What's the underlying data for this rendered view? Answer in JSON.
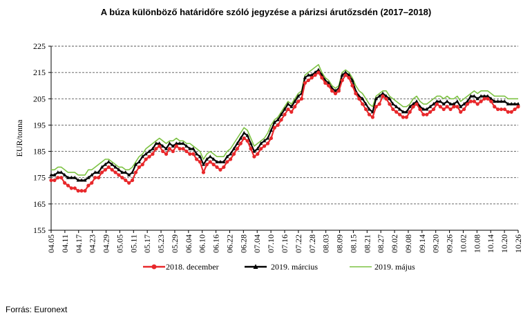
{
  "title": "A búza különböző határidőre szóló jegyzése a párizsi árutőzsdén (2017–2018)",
  "source": "Forrás: Euronext",
  "chart_data": {
    "type": "line",
    "ylabel": "EUR/tonna",
    "ylim": [
      155,
      225
    ],
    "yticks": [
      155,
      165,
      175,
      185,
      195,
      205,
      215,
      225
    ],
    "grid": "horizontal dashed",
    "legend_position": "bottom",
    "x_tick_labels": [
      "04.05",
      "04.11",
      "04.17",
      "04.23",
      "04.29",
      "05.05",
      "05.11",
      "05.17",
      "05.23",
      "05.29",
      "06.04",
      "06.10",
      "06.16",
      "06.22",
      "06.28",
      "07.04",
      "07.10",
      "07.16",
      "07.22",
      "07.28",
      "08.03",
      "08.09",
      "08.15",
      "08.21",
      "08.27",
      "09.02",
      "09.08",
      "09.14",
      "09.20",
      "09.26",
      "10.02",
      "10.08",
      "10.14",
      "10.20",
      "10.26"
    ],
    "series": [
      {
        "name": "2018. december",
        "color": "#e8282b",
        "marker": "circle",
        "values": [
          174,
          174,
          175,
          175,
          173,
          172,
          171,
          171,
          170,
          170,
          170,
          172,
          173,
          175,
          175,
          177,
          178,
          179,
          178,
          177,
          176,
          175,
          174,
          173,
          174,
          177,
          179,
          180,
          182,
          183,
          184,
          186,
          187,
          185,
          184,
          186,
          185,
          187,
          186,
          186,
          185,
          184,
          184,
          182,
          181,
          177,
          180,
          181,
          180,
          179,
          178,
          179,
          181,
          182,
          184,
          186,
          188,
          190,
          189,
          186,
          183,
          184,
          186,
          187,
          188,
          190,
          194,
          195,
          197,
          199,
          201,
          200,
          202,
          204,
          205,
          211,
          212,
          213,
          214,
          215,
          213,
          211,
          210,
          208,
          207,
          208,
          212,
          214,
          213,
          210,
          207,
          205,
          203,
          201,
          199,
          198,
          202,
          203,
          206,
          205,
          203,
          201,
          200,
          199,
          198,
          198,
          200,
          202,
          203,
          201,
          199,
          199,
          200,
          201,
          203,
          202,
          201,
          202,
          201,
          202,
          202,
          200,
          201,
          203,
          204,
          204,
          203,
          204,
          205,
          205,
          204,
          202,
          201,
          201,
          201,
          200,
          200,
          201,
          202
        ]
      },
      {
        "name": "2019. március",
        "color": "#000000",
        "marker": "triangle",
        "values": [
          176,
          176,
          177,
          177,
          176,
          175,
          175,
          175,
          174,
          174,
          174,
          175,
          176,
          177,
          177,
          179,
          180,
          181,
          180,
          179,
          178,
          177,
          177,
          176,
          177,
          180,
          181,
          183,
          184,
          185,
          186,
          188,
          188,
          187,
          186,
          188,
          187,
          188,
          188,
          188,
          187,
          186,
          186,
          184,
          183,
          180,
          182,
          183,
          182,
          181,
          181,
          181,
          183,
          184,
          186,
          188,
          190,
          192,
          191,
          188,
          185,
          186,
          188,
          189,
          190,
          193,
          196,
          197,
          199,
          201,
          203,
          202,
          204,
          206,
          207,
          213,
          214,
          214,
          215,
          216,
          214,
          212,
          211,
          209,
          208,
          209,
          214,
          215,
          214,
          212,
          208,
          206,
          205,
          203,
          201,
          200,
          205,
          206,
          207,
          206,
          205,
          203,
          202,
          201,
          200,
          200,
          202,
          203,
          204,
          202,
          201,
          201,
          202,
          203,
          204,
          204,
          203,
          204,
          203,
          203,
          204,
          202,
          203,
          204,
          206,
          206,
          205,
          206,
          206,
          206,
          205,
          204,
          204,
          204,
          204,
          203,
          203,
          203,
          203
        ]
      },
      {
        "name": "2019. május",
        "color": "#7cc242",
        "marker": "none",
        "values": [
          178,
          178,
          179,
          179,
          178,
          177,
          177,
          177,
          176,
          176,
          176,
          178,
          178,
          179,
          180,
          181,
          182,
          182,
          181,
          180,
          179,
          179,
          178,
          178,
          179,
          181,
          183,
          184,
          186,
          187,
          188,
          189,
          190,
          189,
          188,
          189,
          189,
          190,
          189,
          189,
          188,
          188,
          187,
          186,
          185,
          182,
          184,
          185,
          184,
          183,
          183,
          183,
          185,
          186,
          188,
          190,
          192,
          194,
          193,
          190,
          187,
          188,
          189,
          190,
          192,
          195,
          197,
          198,
          200,
          202,
          204,
          203,
          205,
          207,
          208,
          214,
          215,
          216,
          217,
          218,
          215,
          213,
          212,
          210,
          209,
          210,
          215,
          216,
          215,
          213,
          210,
          208,
          207,
          205,
          203,
          202,
          206,
          207,
          208,
          208,
          206,
          205,
          204,
          203,
          202,
          202,
          203,
          205,
          206,
          204,
          203,
          203,
          204,
          205,
          206,
          206,
          205,
          206,
          205,
          205,
          206,
          204,
          205,
          206,
          207,
          208,
          207,
          208,
          208,
          208,
          207,
          206,
          206,
          206,
          206,
          205,
          205,
          205,
          205
        ]
      }
    ]
  }
}
